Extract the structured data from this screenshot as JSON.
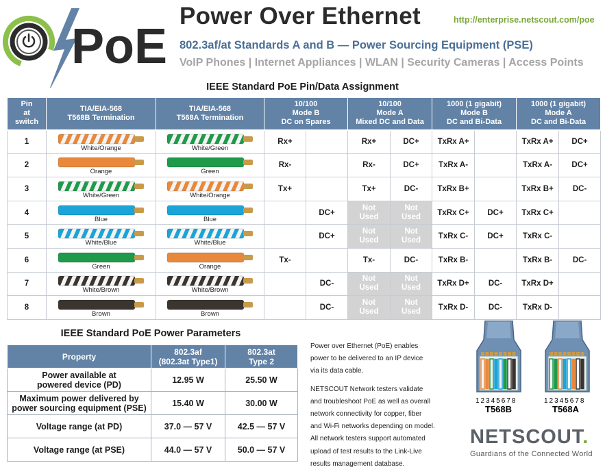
{
  "header": {
    "logo_text": "PoE",
    "title": "Power Over Ethernet",
    "url": "http://enterprise.netscout.com/poe",
    "subtitle": "802.3af/at Standards A and B — Power Sourcing Equipment (PSE)",
    "applications": "VoIP Phones | Internet Appliances | WLAN | Security Cameras | Access Points"
  },
  "pin_table": {
    "title": "IEEE Standard PoE Pin/Data Assignment",
    "headers": {
      "pin": [
        "Pin",
        "at",
        "switch"
      ],
      "t568b": [
        "TIA/EIA-568",
        "T568B Termination"
      ],
      "t568a": [
        "TIA/EIA-568",
        "T568A Termination"
      ],
      "mode_b_100": [
        "10/100",
        "Mode B",
        "DC on Spares"
      ],
      "mode_a_100": [
        "10/100",
        "Mode A",
        "Mixed DC and Data"
      ],
      "mode_b_1000": [
        "1000 (1 gigabit)",
        "Mode B",
        "DC and Bi-Data"
      ],
      "mode_a_1000": [
        "1000 (1 gigabit)",
        "Mode A",
        "DC and Bi-Data"
      ]
    },
    "not_used": [
      "Not",
      "Used"
    ],
    "wire_colors": {
      "orange": "#e8883a",
      "green": "#1f9a4a",
      "blue": "#1ba4d8",
      "brown": "#3b3530",
      "white": "#f4f4f4",
      "copper": "#c89a4a"
    },
    "rows": [
      {
        "pin": "1",
        "b_label": "White/Orange",
        "b_color": "orange",
        "b_striped": true,
        "a_label": "White/Green",
        "a_color": "green",
        "a_striped": true,
        "mb100": [
          "Rx+",
          ""
        ],
        "ma100": [
          "Rx+",
          "DC+"
        ],
        "mb1000": [
          "TxRx A+",
          ""
        ],
        "ma1000": [
          "TxRx A+",
          "DC+"
        ]
      },
      {
        "pin": "2",
        "b_label": "Orange",
        "b_color": "orange",
        "b_striped": false,
        "a_label": "Green",
        "a_color": "green",
        "a_striped": false,
        "mb100": [
          "Rx-",
          ""
        ],
        "ma100": [
          "Rx-",
          "DC+"
        ],
        "mb1000": [
          "TxRx A-",
          ""
        ],
        "ma1000": [
          "TxRx A-",
          "DC+"
        ]
      },
      {
        "pin": "3",
        "b_label": "White/Green",
        "b_color": "green",
        "b_striped": true,
        "a_label": "White/Orange",
        "a_color": "orange",
        "a_striped": true,
        "mb100": [
          "Tx+",
          ""
        ],
        "ma100": [
          "Tx+",
          "DC-"
        ],
        "mb1000": [
          "TxRx B+",
          ""
        ],
        "ma1000": [
          "TxRx B+",
          "DC-"
        ]
      },
      {
        "pin": "4",
        "b_label": "Blue",
        "b_color": "blue",
        "b_striped": false,
        "a_label": "Blue",
        "a_color": "blue",
        "a_striped": false,
        "mb100": [
          "",
          "DC+"
        ],
        "ma100": null,
        "mb1000": [
          "TxRx C+",
          "DC+"
        ],
        "ma1000": [
          "TxRx C+",
          ""
        ]
      },
      {
        "pin": "5",
        "b_label": "White/Blue",
        "b_color": "blue",
        "b_striped": true,
        "a_label": "White/Blue",
        "a_color": "blue",
        "a_striped": true,
        "mb100": [
          "",
          "DC+"
        ],
        "ma100": null,
        "mb1000": [
          "TxRx C-",
          "DC+"
        ],
        "ma1000": [
          "TxRx C-",
          ""
        ]
      },
      {
        "pin": "6",
        "b_label": "Green",
        "b_color": "green",
        "b_striped": false,
        "a_label": "Orange",
        "a_color": "orange",
        "a_striped": false,
        "mb100": [
          "Tx-",
          ""
        ],
        "ma100": [
          "Tx-",
          "DC-"
        ],
        "mb1000": [
          "TxRx B-",
          ""
        ],
        "ma1000": [
          "TxRx B-",
          "DC-"
        ]
      },
      {
        "pin": "7",
        "b_label": "White/Brown",
        "b_color": "brown",
        "b_striped": true,
        "a_label": "White/Brown",
        "a_color": "brown",
        "a_striped": true,
        "mb100": [
          "",
          "DC-"
        ],
        "ma100": null,
        "mb1000": [
          "TxRx D+",
          "DC-"
        ],
        "ma1000": [
          "TxRx D+",
          ""
        ]
      },
      {
        "pin": "8",
        "b_label": "Brown",
        "b_color": "brown",
        "b_striped": false,
        "a_label": "Brown",
        "a_color": "brown",
        "a_striped": false,
        "mb100": [
          "",
          "DC-"
        ],
        "ma100": null,
        "mb1000": [
          "TxRx D-",
          "DC-"
        ],
        "ma1000": [
          "TxRx D-",
          ""
        ]
      }
    ]
  },
  "power_table": {
    "title": "IEEE Standard PoE Power Parameters",
    "headers": {
      "property": "Property",
      "af": [
        "802.3af",
        "(802.3at Type1)"
      ],
      "at": [
        "802.3at",
        "Type 2"
      ]
    },
    "rows": [
      {
        "property": [
          "Power available at",
          "powered device (PD)"
        ],
        "af": "12.95 W",
        "at": "25.50 W"
      },
      {
        "property": [
          "Maximum power delivered by",
          "power sourcing equipment (PSE)"
        ],
        "af": "15.40 W",
        "at": "30.00 W"
      },
      {
        "property": [
          "Voltage range (at PD)"
        ],
        "af": "37.0 — 57 V",
        "at": "42.5 — 57 V"
      },
      {
        "property": [
          "Voltage range (at PSE)"
        ],
        "af": "44.0 — 57 V",
        "at": "50.0 — 57 V"
      }
    ]
  },
  "description": {
    "p1": [
      "Power over Ethernet (PoE) enables",
      "power to be delivered to an IP device",
      "via its data cable."
    ],
    "p2": [
      "NETSCOUT Network testers validate",
      "and troubleshoot PoE as well as overall",
      "network connectivity for copper, fiber",
      "and Wi-Fi networks depending on model.",
      "All network testers support automated",
      "upload of test results to the Link-Live",
      "results management database."
    ]
  },
  "connectors": {
    "pin_numbers": "12345678",
    "left_name": "T568B",
    "right_name": "T568A"
  },
  "brand": {
    "name": "NETSCOUT",
    "dot": ".",
    "tagline": "Guardians of the Connected World"
  }
}
